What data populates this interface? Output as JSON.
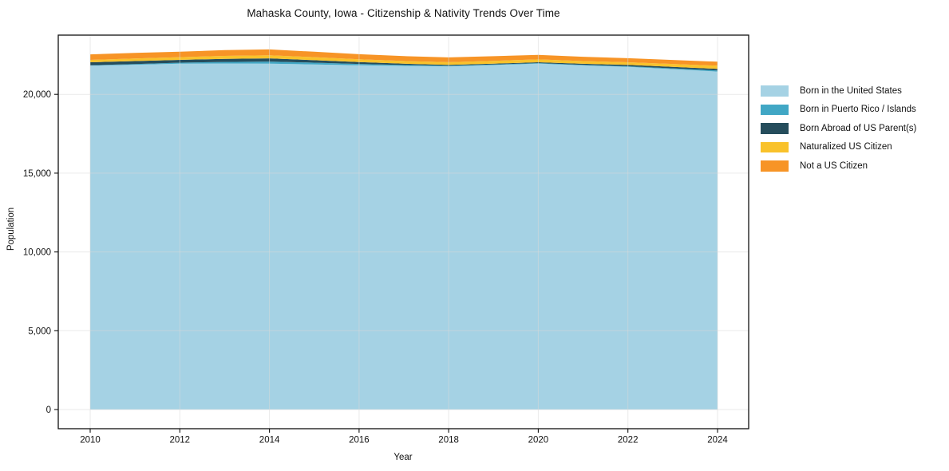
{
  "chart_data": {
    "type": "area",
    "stacked": true,
    "title": "Mahaska County, Iowa - Citizenship & Nativity Trends Over Time",
    "xlabel": "Year",
    "ylabel": "Population",
    "grid": true,
    "legend_position": "right-outside",
    "x": [
      2010,
      2011,
      2012,
      2013,
      2014,
      2015,
      2016,
      2017,
      2018,
      2019,
      2020,
      2021,
      2022,
      2023,
      2024
    ],
    "x_ticks": [
      2010,
      2012,
      2014,
      2016,
      2018,
      2020,
      2022,
      2024
    ],
    "x_tick_labels": [
      "2010",
      "2012",
      "2014",
      "2016",
      "2018",
      "2020",
      "2022",
      "2024"
    ],
    "y_ticks": [
      0,
      5000,
      10000,
      15000,
      20000
    ],
    "y_tick_labels": [
      "0",
      "5,000",
      "10,000",
      "15,000",
      "20,000"
    ],
    "ylim": [
      0,
      23760
    ],
    "series": [
      {
        "name": "Born in the United States",
        "color": "#a5d2e4",
        "values": [
          21820,
          21880,
          21950,
          21960,
          21950,
          21900,
          21850,
          21810,
          21780,
          21860,
          21950,
          21840,
          21750,
          21600,
          21450
        ]
      },
      {
        "name": "Born in Puerto Rico / Islands",
        "color": "#41a7c5",
        "values": [
          30,
          40,
          60,
          100,
          135,
          110,
          80,
          55,
          35,
          35,
          35,
          35,
          35,
          50,
          70
        ]
      },
      {
        "name": "Born Abroad of US Parent(s)",
        "color": "#254d5c",
        "values": [
          190,
          195,
          180,
          195,
          200,
          160,
          120,
          80,
          60,
          55,
          50,
          65,
          85,
          95,
          100
        ]
      },
      {
        "name": "Naturalized US Citizen",
        "color": "#f9c22b",
        "values": [
          150,
          160,
          170,
          190,
          200,
          190,
          180,
          175,
          170,
          180,
          185,
          175,
          170,
          185,
          200
        ]
      },
      {
        "name": "Not a US Citizen",
        "color": "#f79426",
        "values": [
          350,
          360,
          350,
          365,
          370,
          345,
          320,
          310,
          300,
          295,
          290,
          270,
          255,
          255,
          255
        ]
      }
    ]
  }
}
